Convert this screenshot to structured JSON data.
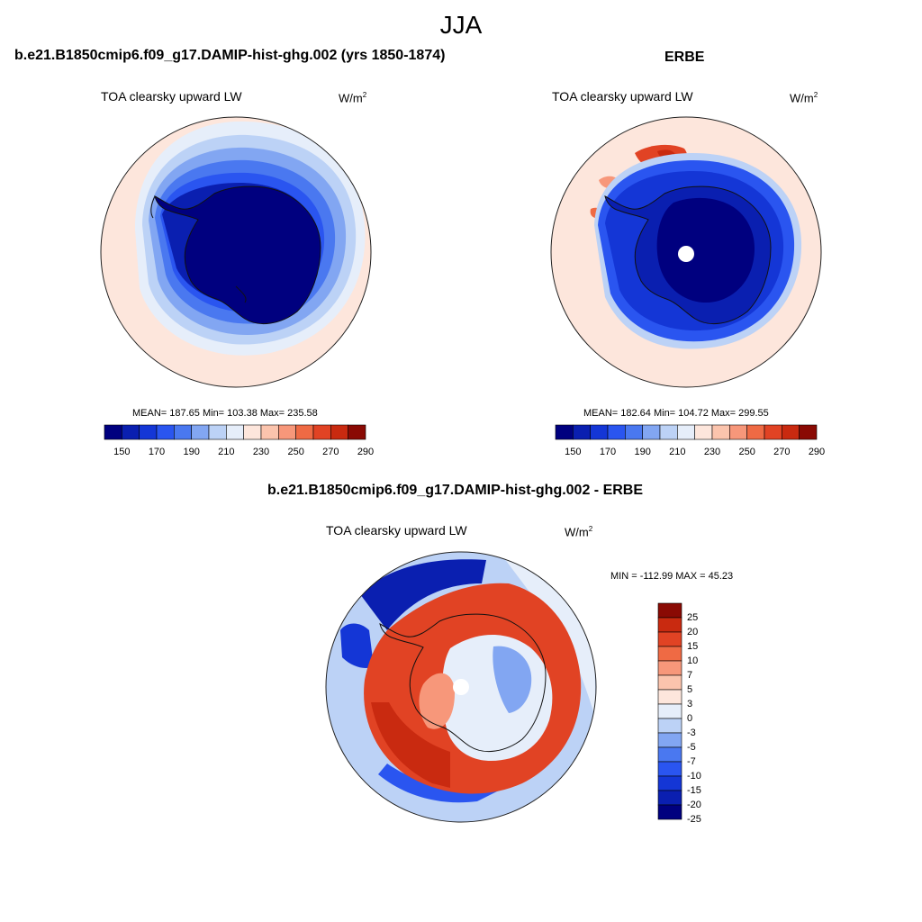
{
  "main_title": "JJA",
  "colors": {
    "abs_palette": [
      "#00007f",
      "#0a1fb0",
      "#1436d6",
      "#2a55f0",
      "#4a78f0",
      "#82a6f2",
      "#bcd2f6",
      "#e6eefa",
      "#fde6dc",
      "#fbc4ad",
      "#f7977a",
      "#ef6a44",
      "#e14324",
      "#c92a10",
      "#8a0a04"
    ],
    "diff_palette": [
      "#00007f",
      "#0a1fb0",
      "#1436d6",
      "#2a55f0",
      "#4a78f0",
      "#82a6f2",
      "#bcd2f6",
      "#e6eefa",
      "#fde6dc",
      "#fbc4ad",
      "#f7977a",
      "#ef6a44",
      "#e14324",
      "#c92a10",
      "#8a0a04"
    ]
  },
  "panels": [
    {
      "title": "b.e21.B1850cmip6.f09_g17.DAMIP-hist-ghg.002 (yrs 1850-1874)",
      "variable": "TOA clearsky upward LW",
      "units_base": "W/m",
      "units_exp": "2",
      "stats": "MEAN= 187.65  Min= 103.38  Max= 235.58"
    },
    {
      "title": "ERBE",
      "variable": "TOA clearsky upward LW",
      "units_base": "W/m",
      "units_exp": "2",
      "stats": "MEAN= 182.64  Min= 104.72  Max= 299.55"
    },
    {
      "title": "b.e21.B1850cmip6.f09_g17.DAMIP-hist-ghg.002 - ERBE",
      "variable": "TOA clearsky upward LW",
      "units_base": "W/m",
      "units_exp": "2",
      "stats": "MIN = -112.99 MAX =  45.23"
    }
  ],
  "chart_data": [
    {
      "type": "heatmap",
      "projection": "south polar stereographic",
      "title": "b.e21.B1850cmip6.f09_g17.DAMIP-hist-ghg.002 (yrs 1850-1874)",
      "variable": "TOA clearsky upward LW",
      "units": "W/m2",
      "mean": 187.65,
      "min": 103.38,
      "max": 235.58,
      "colorbar": {
        "orientation": "horizontal",
        "tick_labels": [
          "150",
          "170",
          "190",
          "210",
          "230",
          "250",
          "270",
          "290"
        ],
        "levels": [
          140,
          150,
          160,
          170,
          180,
          190,
          200,
          210,
          220,
          230,
          240,
          250,
          260,
          270,
          280,
          290
        ]
      }
    },
    {
      "type": "heatmap",
      "projection": "south polar stereographic",
      "title": "ERBE",
      "variable": "TOA clearsky upward LW",
      "units": "W/m2",
      "mean": 182.64,
      "min": 104.72,
      "max": 299.55,
      "colorbar": {
        "orientation": "horizontal",
        "tick_labels": [
          "150",
          "170",
          "190",
          "210",
          "230",
          "250",
          "270",
          "290"
        ],
        "levels": [
          140,
          150,
          160,
          170,
          180,
          190,
          200,
          210,
          220,
          230,
          240,
          250,
          260,
          270,
          280,
          290
        ]
      }
    },
    {
      "type": "heatmap",
      "projection": "south polar stereographic",
      "title": "b.e21.B1850cmip6.f09_g17.DAMIP-hist-ghg.002 - ERBE",
      "variable": "TOA clearsky upward LW",
      "units": "W/m2",
      "min": -112.99,
      "max": 45.23,
      "colorbar": {
        "orientation": "vertical",
        "tick_labels": [
          "25",
          "20",
          "15",
          "10",
          "7",
          "5",
          "3",
          "0",
          "-3",
          "-5",
          "-7",
          "-10",
          "-15",
          "-20",
          "-25"
        ]
      }
    }
  ]
}
